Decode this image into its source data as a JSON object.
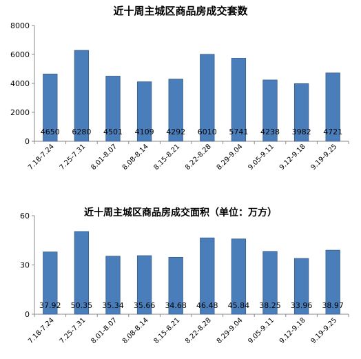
{
  "chart_data": [
    {
      "type": "bar",
      "title": "近十周主城区商品房成交套数",
      "categories": [
        "7.18-7.24",
        "7.25-7.31",
        "8.01-8.07",
        "8.08-8.14",
        "8.15-8.21",
        "8.22-8.28",
        "8.29-9.04",
        "9.05-9.11",
        "9.12-9.18",
        "9.19-9.25"
      ],
      "values": [
        4650,
        6280,
        4501,
        4109,
        4292,
        6010,
        5741,
        4238,
        3982,
        4721
      ],
      "value_labels": [
        "4650",
        "6280",
        "4501",
        "4109",
        "4292",
        "6010",
        "5741",
        "4238",
        "3982",
        "4721"
      ],
      "yticks": [
        "0",
        "2000",
        "4000",
        "6000",
        "8000"
      ],
      "ylim": [
        0,
        8000
      ],
      "grid": false,
      "legend": "none",
      "bar_color": "#4a7ebb"
    },
    {
      "type": "bar",
      "title": "近十周主城区商品房成交面积（单位：万方）",
      "categories": [
        "7.18-7.24",
        "7.25-7.31",
        "8.01-8.07",
        "8.08-8.14",
        "8.15-8.21",
        "8.22-8.28",
        "8.29-9.04",
        "9.05-9.11",
        "9.12-9.18",
        "9.19-9.25"
      ],
      "values": [
        37.92,
        50.35,
        35.34,
        35.66,
        34.68,
        46.48,
        45.84,
        38.25,
        33.96,
        38.97
      ],
      "value_labels": [
        "37.92",
        "50.35",
        "35.34",
        "35.66",
        "34.68",
        "46.48",
        "45.84",
        "38.25",
        "33.96",
        "38.97"
      ],
      "yticks": [
        "0",
        "30",
        "60"
      ],
      "ylim": [
        0,
        60
      ],
      "grid": false,
      "legend": "none",
      "bar_color": "#4a7ebb"
    }
  ]
}
